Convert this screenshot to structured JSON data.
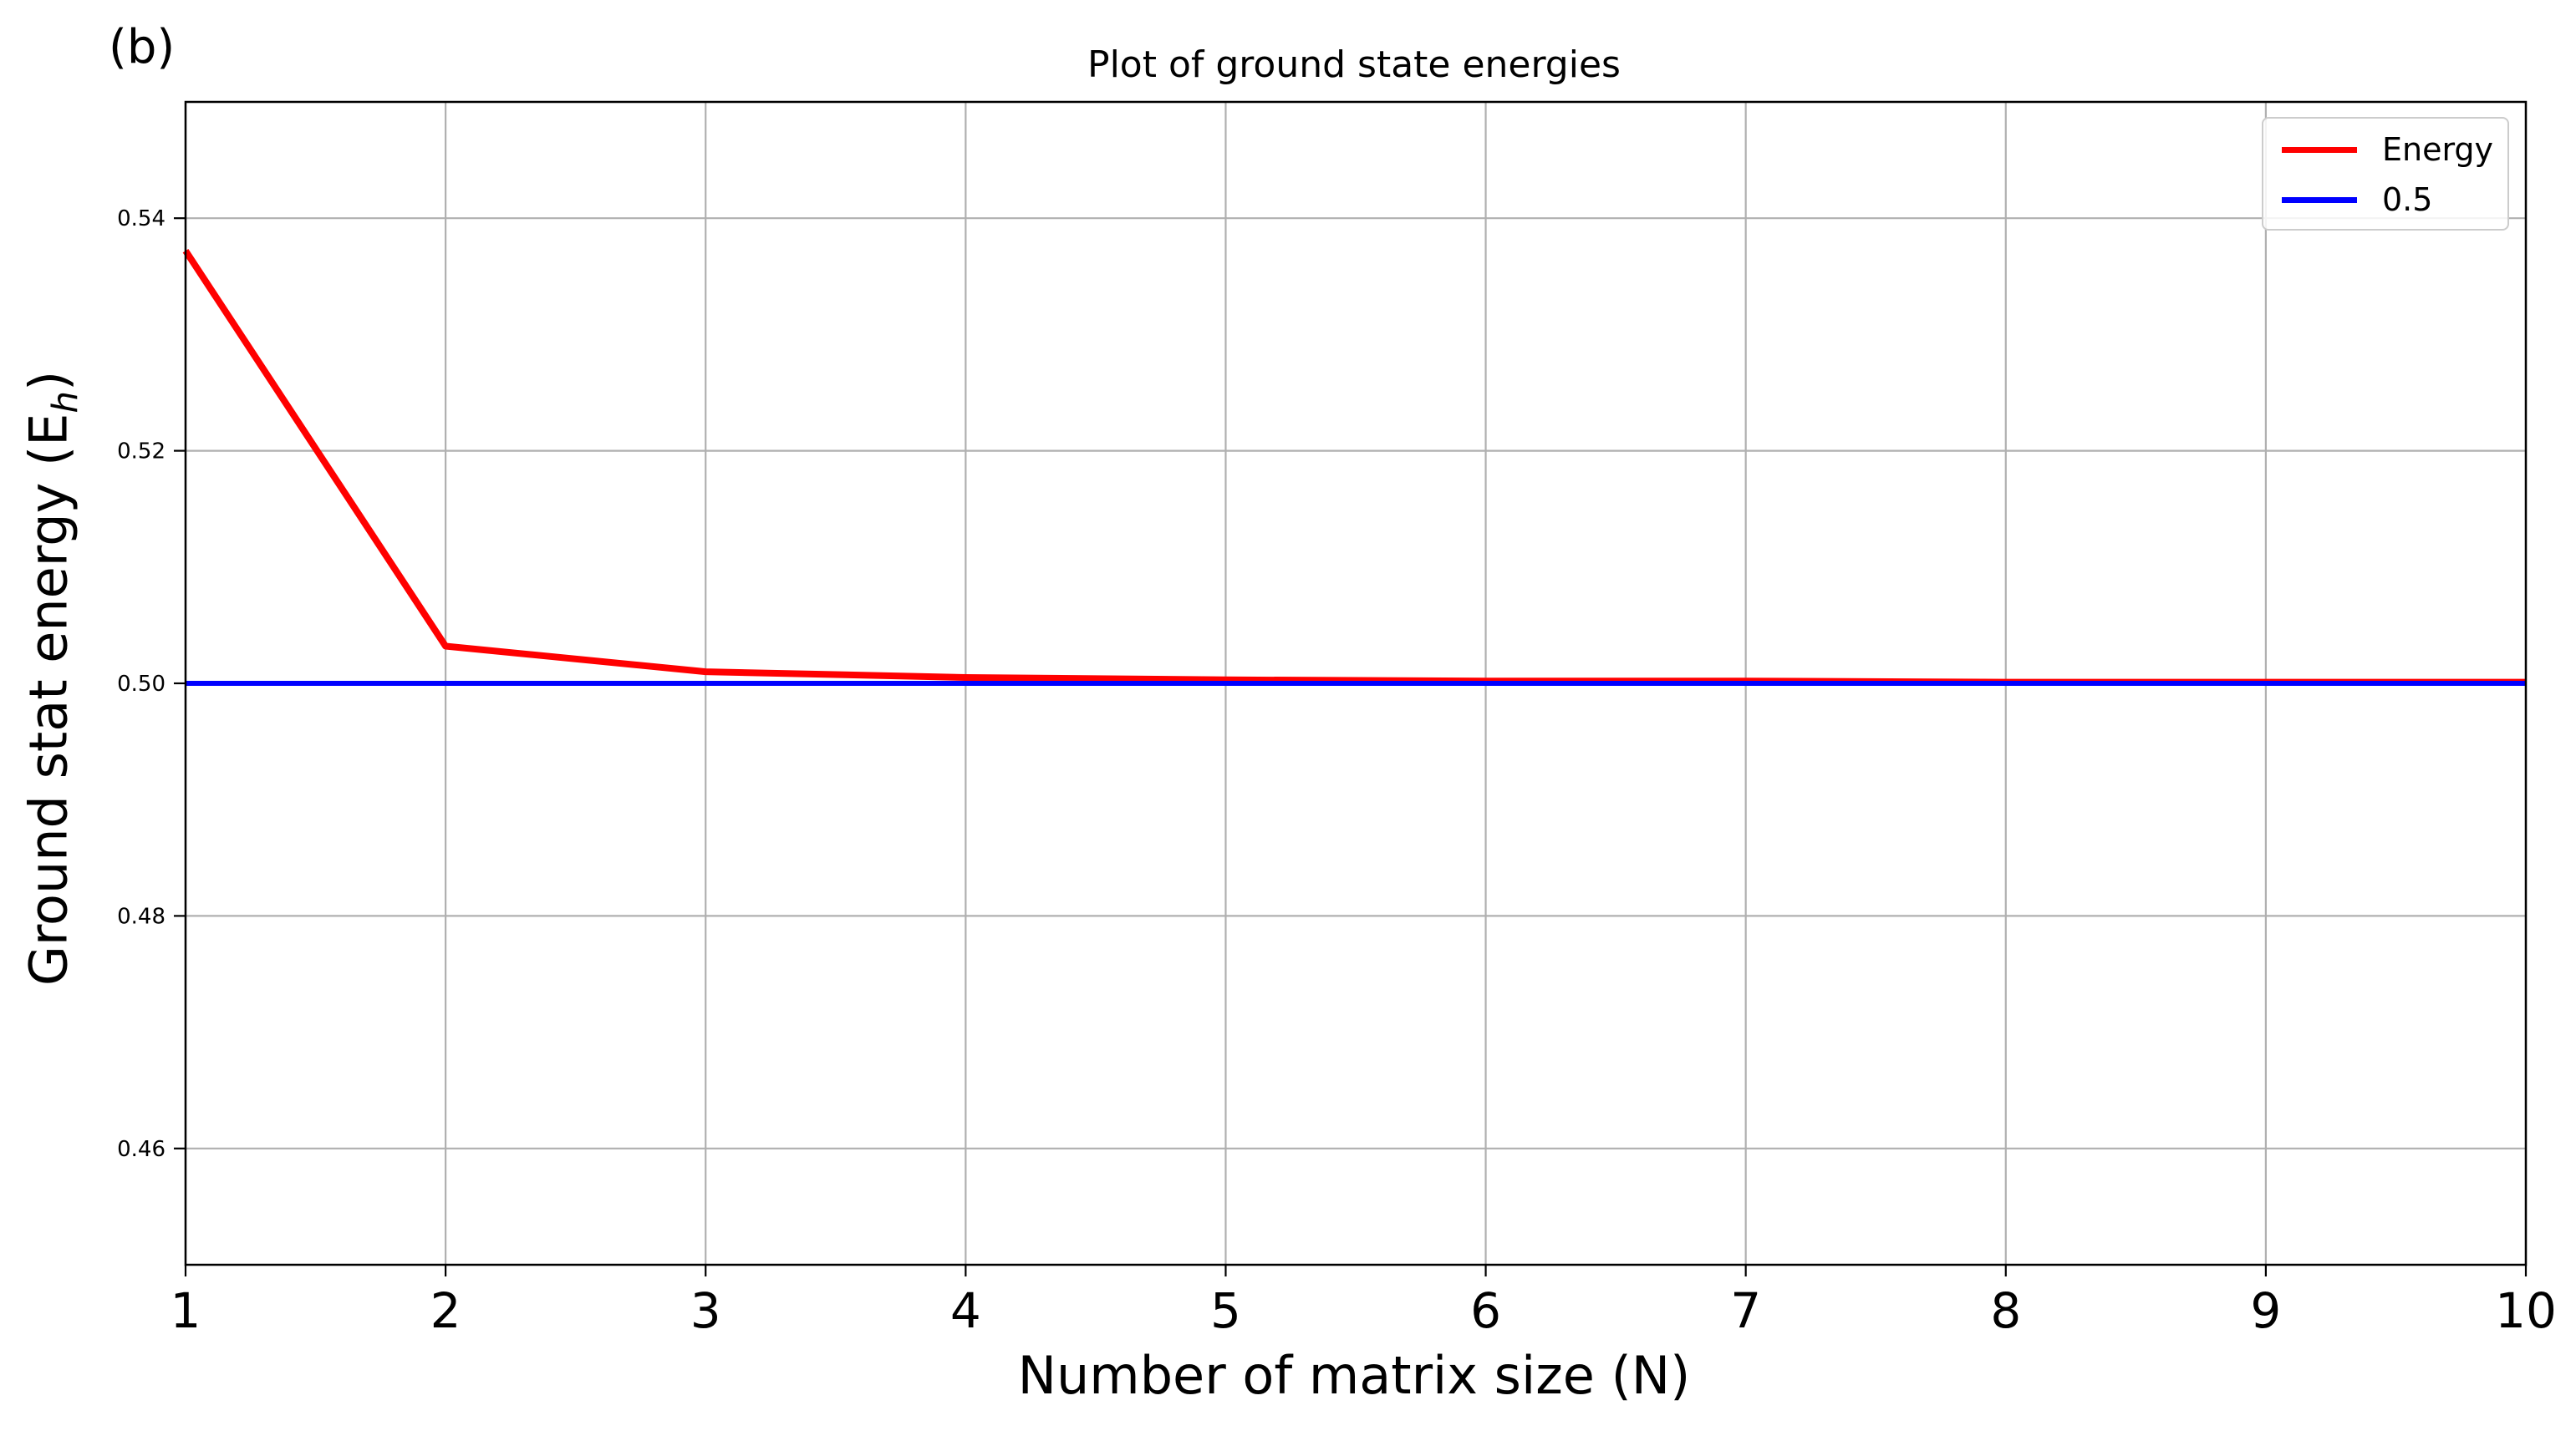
{
  "panel_label": "(b)",
  "chart_data": {
    "type": "line",
    "title": "Plot of ground state energies",
    "xlabel": "Number of matrix size (N)",
    "ylabel": "Ground stat energy (E",
    "ylabel_sub": "h",
    "ylabel_close": ")",
    "xlim": [
      1,
      10
    ],
    "ylim": [
      0.45,
      0.55
    ],
    "xticks": [
      1,
      2,
      3,
      4,
      5,
      6,
      7,
      8,
      9,
      10
    ],
    "xtick_labels": [
      "1",
      "2",
      "3",
      "4",
      "5",
      "6",
      "7",
      "8",
      "9",
      "10"
    ],
    "yticks": [
      0.46,
      0.48,
      0.5,
      0.52,
      0.54
    ],
    "ytick_labels": [
      "0.46",
      "0.48",
      "0.50",
      "0.52",
      "0.54"
    ],
    "grid": true,
    "legend_position": "top-right",
    "x": [
      1,
      2,
      3,
      4,
      5,
      6,
      7,
      8,
      9,
      10
    ],
    "series": [
      {
        "name": "Energy",
        "color": "#ff0000",
        "values": [
          0.5372,
          0.5032,
          0.501,
          0.5005,
          0.5003,
          0.5002,
          0.5002,
          0.5001,
          0.5001,
          0.5001
        ]
      },
      {
        "name": "0.5",
        "color": "#0000ff",
        "values": [
          0.5,
          0.5,
          0.5,
          0.5,
          0.5,
          0.5,
          0.5,
          0.5,
          0.5,
          0.5
        ]
      }
    ]
  }
}
